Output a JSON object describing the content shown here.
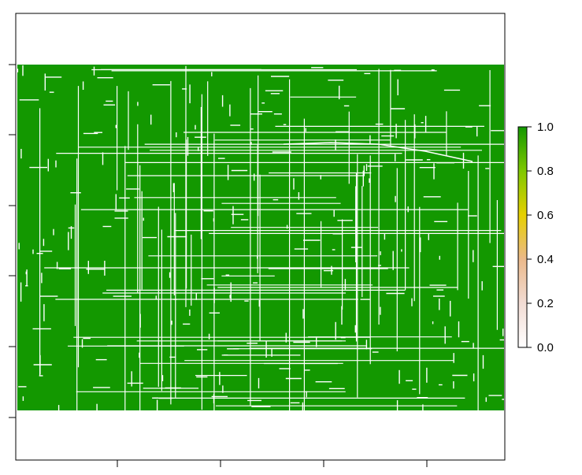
{
  "chart_data": {
    "type": "heatmap",
    "title": "",
    "xlabel": "",
    "ylabel": "",
    "x_ticks": [
      "",
      "",
      "",
      ""
    ],
    "y_ticks": [
      "",
      "",
      "",
      "",
      ""
    ],
    "description_values": "raster of mostly value 1.0 (fill) crossed by thin lines of value ~0 (gaps); blank rows above and below raster",
    "fill_value": 1.0,
    "gap_value": 0.0,
    "colorbar": {
      "ticks": [
        "0.0",
        "0.2",
        "0.4",
        "0.6",
        "0.8",
        "1.0"
      ],
      "range": [
        0,
        1
      ],
      "stops": [
        "#ffffff",
        "#f2dcd4",
        "#ebb98a",
        "#e6d000",
        "#7fc800",
        "#139800"
      ]
    },
    "colors": {
      "fill": "#139800",
      "gap": "#ffffff",
      "frame": "#000000"
    }
  }
}
